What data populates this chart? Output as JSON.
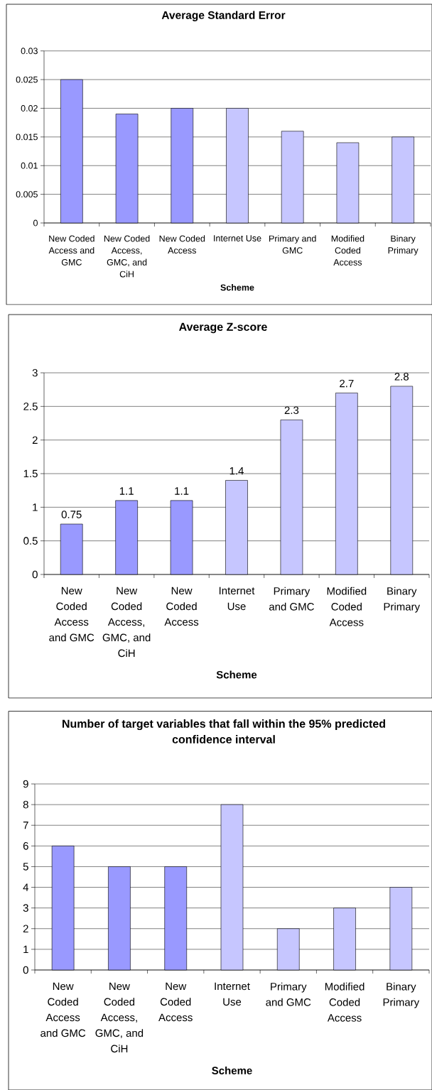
{
  "chart_data": [
    {
      "type": "bar",
      "title": "Average Standard Error",
      "xlabel": "Scheme",
      "categories": [
        "New Coded Access and GMC",
        "New Coded Access, GMC, and CiH",
        "New Coded Access",
        "Internet Use",
        "Primary and GMC",
        "Modified Coded Access",
        "Binary Primary"
      ],
      "series": [
        {
          "color": "#9999ff",
          "values": [
            0.025,
            0.019,
            0.02,
            null,
            null,
            null,
            null
          ]
        },
        {
          "color": "#c6c6ff",
          "values": [
            null,
            null,
            null,
            0.02,
            0.016,
            0.014,
            0.015
          ]
        }
      ],
      "ylim": [
        0,
        0.03
      ],
      "yticks": [
        0,
        0.005,
        0.01,
        0.015,
        0.02,
        0.025,
        0.03
      ],
      "grid": "y"
    },
    {
      "type": "bar",
      "title": "Average Z-score",
      "xlabel": "Scheme",
      "categories": [
        "New Coded Access and GMC",
        "New Coded Access, GMC, and CiH",
        "New Coded Access",
        "Internet Use",
        "Primary and GMC",
        "Modified Coded Access",
        "Binary Primary"
      ],
      "series": [
        {
          "color": "#9999ff",
          "values": [
            0.75,
            1.1,
            1.1,
            null,
            null,
            null,
            null
          ]
        },
        {
          "color": "#c6c6ff",
          "values": [
            null,
            null,
            null,
            1.4,
            2.3,
            2.7,
            2.8
          ]
        }
      ],
      "ylim": [
        0,
        3
      ],
      "yticks": [
        0,
        0.5,
        1,
        1.5,
        2,
        2.5,
        3
      ],
      "grid": "y",
      "data_labels": true
    },
    {
      "type": "bar",
      "title": "Number of target variables that fall within the 95% predicted confidence interval",
      "xlabel": "Scheme",
      "categories": [
        "New Coded Access and GMC",
        "New Coded Access, GMC, and CiH",
        "New Coded Access",
        "Internet Use",
        "Primary and GMC",
        "Modified Coded Access",
        "Binary Primary"
      ],
      "series": [
        {
          "color": "#9999ff",
          "values": [
            6,
            5,
            5,
            null,
            null,
            null,
            null
          ]
        },
        {
          "color": "#c6c6ff",
          "values": [
            null,
            null,
            null,
            8,
            2,
            3,
            4
          ]
        }
      ],
      "ylim": [
        0,
        9
      ],
      "yticks": [
        0,
        1,
        2,
        3,
        4,
        5,
        6,
        7,
        8,
        9
      ],
      "grid": "y"
    }
  ]
}
